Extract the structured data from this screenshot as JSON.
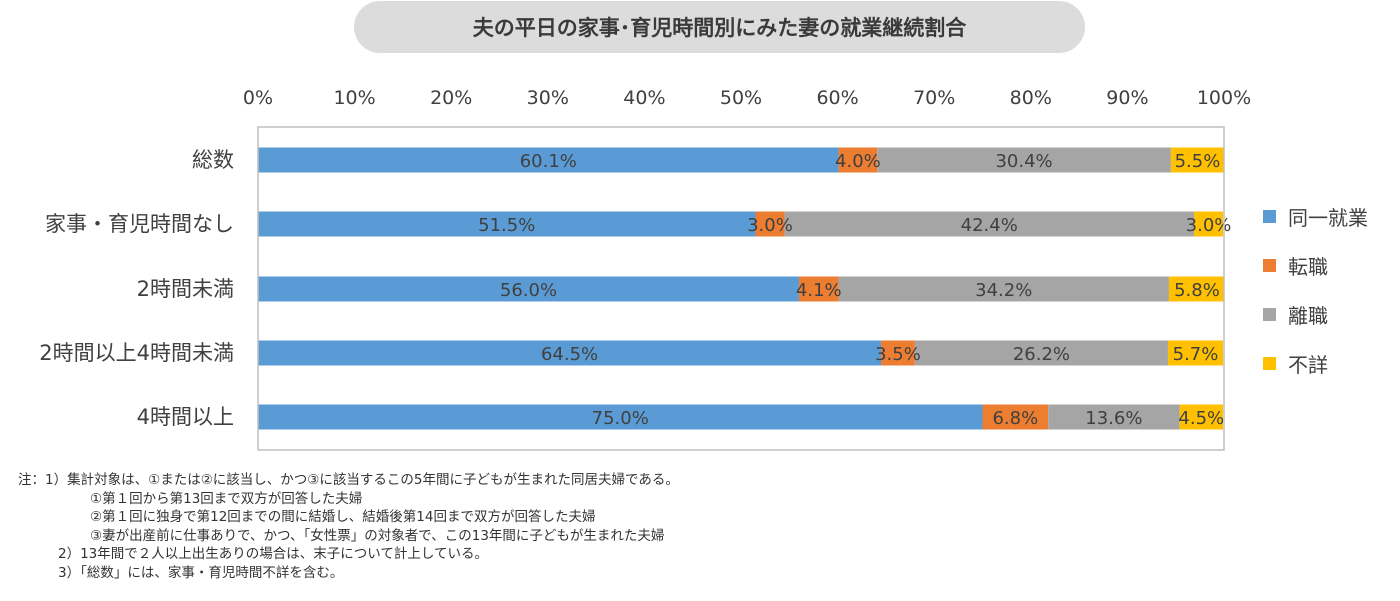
{
  "colors": {
    "same_job": "#5b9bd5",
    "job_change": "#ed7d31",
    "left_job": "#a5a5a5",
    "unknown": "#ffc000"
  },
  "chart_data": {
    "type": "bar",
    "orientation": "horizontal",
    "stacked": true,
    "percent": true,
    "title": "夫の平日の家事･育児時間別にみた妻の就業継続割合",
    "xlim": [
      0,
      100
    ],
    "x_ticks": [
      "0%",
      "10%",
      "20%",
      "30%",
      "40%",
      "50%",
      "60%",
      "70%",
      "80%",
      "90%",
      "100%"
    ],
    "categories": [
      "総数",
      "家事・育児時間なし",
      "2時間未満",
      "2時間以上4時間未満",
      "4時間以上"
    ],
    "series": [
      {
        "name": "同一就業",
        "color": "#5b9bd5",
        "values": [
          60.1,
          51.5,
          56.0,
          64.5,
          75.0
        ],
        "labels": [
          "60.1%",
          "51.5%",
          "56.0%",
          "64.5%",
          "75.0%"
        ]
      },
      {
        "name": "転職",
        "color": "#ed7d31",
        "values": [
          4.0,
          3.0,
          4.1,
          3.5,
          6.8
        ],
        "labels": [
          "4.0%",
          "3.0%",
          "4.1%",
          "3.5%",
          "6.8%"
        ]
      },
      {
        "name": "離職",
        "color": "#a5a5a5",
        "values": [
          30.4,
          42.4,
          34.2,
          26.2,
          13.6
        ],
        "labels": [
          "30.4%",
          "42.4%",
          "34.2%",
          "26.2%",
          "13.6%"
        ]
      },
      {
        "name": "不詳",
        "color": "#ffc000",
        "values": [
          5.5,
          3.0,
          5.8,
          5.7,
          4.5
        ],
        "labels": [
          "5.5%",
          "3.0%",
          "5.8%",
          "5.7%",
          "4.5%"
        ]
      }
    ],
    "legend_position": "right",
    "grid": false
  },
  "notes": [
    "注：1）集計対象は、①または②に該当し、かつ③に該当するこの5年間に子どもが生まれた同居夫婦である。",
    "①第１回から第13回まで双方が回答した夫婦",
    "②第１回に独身で第12回までの間に結婚し、結婚後第14回まで双方が回答した夫婦",
    "③妻が出産前に仕事ありで、かつ、「女性票」の対象者で、この13年間に子どもが生まれた夫婦",
    "2）13年間で２人以上出生ありの場合は、末子について計上している。",
    "3）「総数」には、家事・育児時間不詳を含む。"
  ]
}
